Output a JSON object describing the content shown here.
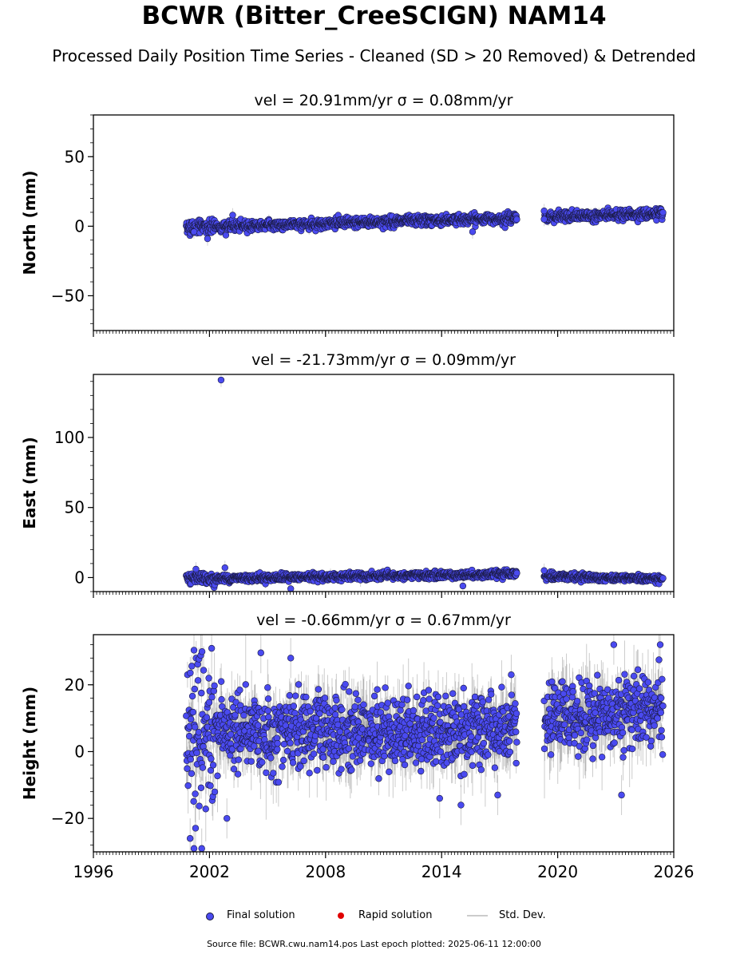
{
  "title": "BCWR (Bitter_CreeSCIGN) NAM14",
  "subtitle": "Processed Daily Position Time Series - Cleaned (SD > 20 Removed) & Detrended",
  "legend": {
    "final": "Final solution",
    "rapid": "Rapid solution",
    "std": "Std. Dev."
  },
  "footer": "Source file: BCWR.cwu.nam14.pos  Last epoch plotted: 2025-06-11 12:00:00",
  "colors": {
    "final": "#4a4af0",
    "rapid": "#e00000",
    "std": "#b0b0b0",
    "edge": "#1a1a40"
  },
  "chart_data": [
    {
      "type": "scatter",
      "title": "vel = 20.91mm/yr   σ = 0.08mm/yr",
      "ylabel": "North (mm)",
      "xlim": [
        1996,
        2026
      ],
      "ylim": [
        -75,
        80
      ],
      "yticks": [
        -50,
        0,
        50
      ],
      "ytick_labels": [
        "−50",
        "0",
        "50"
      ],
      "grid": false,
      "series": [
        {
          "name": "Final solution",
          "segments": [
            {
              "x_range": [
                2000.8,
                2017.9
              ],
              "y_start": -1,
              "y_end": 6,
              "scatter": 1.8
            },
            {
              "x_range": [
                2019.3,
                2025.45
              ],
              "y_start": 6.5,
              "y_end": 9,
              "scatter": 1.8
            }
          ],
          "outliers": [
            {
              "x": 2001.2,
              "y": -4
            },
            {
              "x": 2001.9,
              "y": -9
            },
            {
              "x": 2003.2,
              "y": 8
            },
            {
              "x": 2015.6,
              "y": -4
            },
            {
              "x": 2019.3,
              "y": 11
            },
            {
              "x": 2019.3,
              "y": 5
            }
          ]
        }
      ]
    },
    {
      "type": "scatter",
      "title": "vel = -21.73mm/yr   σ = 0.09mm/yr",
      "ylabel": "East (mm)",
      "xlim": [
        1996,
        2026
      ],
      "ylim": [
        -10,
        145
      ],
      "yticks": [
        0,
        50,
        100
      ],
      "ytick_labels": [
        "0",
        "50",
        "100"
      ],
      "grid": false,
      "series": [
        {
          "name": "Final solution",
          "segments": [
            {
              "x_range": [
                2000.8,
                2017.9
              ],
              "y_start": -1,
              "y_end": 2.5,
              "scatter": 1.3
            },
            {
              "x_range": [
                2019.3,
                2025.45
              ],
              "y_start": 1,
              "y_end": -1,
              "scatter": 1.3
            }
          ],
          "outliers": [
            {
              "x": 2002.6,
              "y": 141
            },
            {
              "x": 2002.8,
              "y": 7
            },
            {
              "x": 2006.2,
              "y": -8
            },
            {
              "x": 2015.1,
              "y": -6
            },
            {
              "x": 2019.3,
              "y": 5
            },
            {
              "x": 2001.3,
              "y": 6
            }
          ]
        }
      ]
    },
    {
      "type": "scatter",
      "title": "vel = -0.66mm/yr   σ = 0.67mm/yr",
      "ylabel": "Height (mm)",
      "xlim": [
        1996,
        2026
      ],
      "ylim": [
        -30,
        35
      ],
      "yticks": [
        -20,
        0,
        20
      ],
      "ytick_labels": [
        "−20",
        "0",
        "20"
      ],
      "xticks": [
        1996,
        2002,
        2008,
        2014,
        2020,
        2026
      ],
      "xtick_labels": [
        "1996",
        "2002",
        "2008",
        "2014",
        "2020",
        "2026"
      ],
      "grid": false,
      "series": [
        {
          "name": "Final solution",
          "segments": [
            {
              "x_range": [
                2000.8,
                2017.9
              ],
              "y_start": 6,
              "y_end": 6,
              "scatter": 5.5
            },
            {
              "x_range": [
                2019.3,
                2025.45
              ],
              "y_start": 9,
              "y_end": 14,
              "scatter": 5.5
            }
          ],
          "outliers": [
            {
              "x": 2001.0,
              "y": -26
            },
            {
              "x": 2001.2,
              "y": -29
            },
            {
              "x": 2001.6,
              "y": -29
            },
            {
              "x": 2002.9,
              "y": -20
            },
            {
              "x": 2013.9,
              "y": -14
            },
            {
              "x": 2015.0,
              "y": -16
            },
            {
              "x": 2016.9,
              "y": -13
            },
            {
              "x": 2023.3,
              "y": -13
            },
            {
              "x": 2022.9,
              "y": 32
            },
            {
              "x": 2025.3,
              "y": 32
            },
            {
              "x": 2006.2,
              "y": 28
            },
            {
              "x": 2017.6,
              "y": 23
            }
          ]
        }
      ]
    }
  ]
}
